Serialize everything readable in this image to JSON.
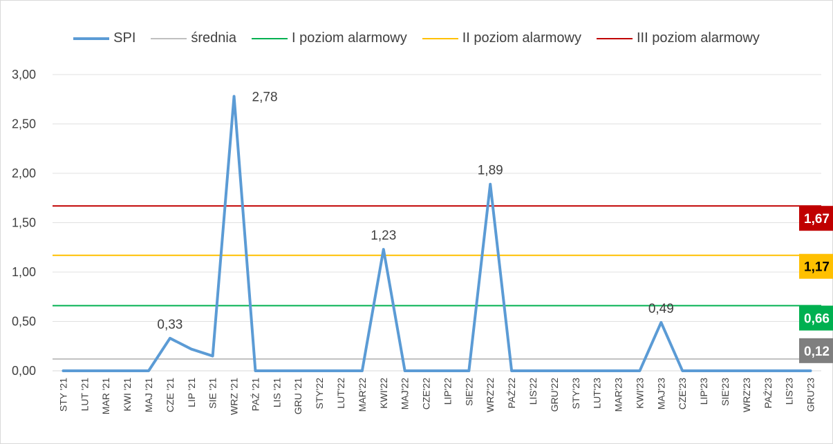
{
  "chart_data": {
    "type": "line",
    "categories": [
      "STY '21",
      "LUT '21",
      "MAR '21",
      "KWI '21",
      "MAJ '21",
      "CZE '21",
      "LIP '21",
      "SIE '21",
      "WRZ '21",
      "PAŹ '21",
      "LIS '21",
      "GRU '21",
      "STY'22",
      "LUT'22",
      "MAR'22",
      "KWI'22",
      "MAJ'22",
      "CZE'22",
      "LIP'22",
      "SIE'22",
      "WRZ'22",
      "PAŹ'22",
      "LIS'22",
      "GRU'22",
      "STY'23",
      "LUT'23",
      "MAR'23",
      "KWI'23",
      "MAJ'23",
      "CZE'23",
      "LIP'23",
      "SIE'23",
      "WRZ'23",
      "PAŹ'23",
      "LIS'23",
      "GRU'23"
    ],
    "series": [
      {
        "name": "SPI",
        "color": "#5b9bd5",
        "values": [
          0,
          0,
          0,
          0,
          0,
          0.33,
          0.22,
          0.15,
          2.78,
          0,
          0,
          0,
          0,
          0,
          0,
          1.23,
          0,
          0,
          0,
          0,
          1.89,
          0,
          0,
          0,
          0,
          0,
          0,
          0,
          0.49,
          0,
          0,
          0,
          0,
          0,
          0,
          0
        ]
      },
      {
        "name": "średnia",
        "color": "#bfbfbf",
        "constant": 0.12,
        "badge_label": "0,12",
        "badge_color": "#7f7f7f"
      },
      {
        "name": "I poziom alarmowy",
        "color": "#00b050",
        "constant": 0.66,
        "badge_label": "0,66",
        "badge_color": "#00b050"
      },
      {
        "name": "II poziom alarmowy",
        "color": "#ffc000",
        "constant": 1.17,
        "badge_label": "1,17",
        "badge_color": "#ffc000"
      },
      {
        "name": "III poziom alarmowy",
        "color": "#c00000",
        "constant": 1.67,
        "badge_label": "1,67",
        "badge_color": "#c00000"
      }
    ],
    "data_labels": [
      {
        "index": 5,
        "text": "0,33"
      },
      {
        "index": 8,
        "text": "2,78"
      },
      {
        "index": 15,
        "text": "1,23"
      },
      {
        "index": 20,
        "text": "1,89"
      },
      {
        "index": 28,
        "text": "0,49"
      }
    ],
    "ylim": [
      0,
      3
    ],
    "yticks": [
      0,
      0.5,
      1,
      1.5,
      2,
      2.5,
      3
    ],
    "ytick_labels": [
      "0,00",
      "0,50",
      "1,00",
      "1,50",
      "2,00",
      "2,50",
      "3,00"
    ],
    "grid": true,
    "legend_position": "top"
  }
}
